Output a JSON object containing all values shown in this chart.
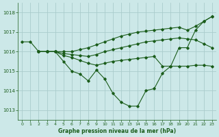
{
  "xlabel": "Graphe pression niveau de la mer (hPa)",
  "xlim": [
    -0.5,
    23.5
  ],
  "ylim": [
    1012.5,
    1018.5
  ],
  "yticks": [
    1013,
    1014,
    1015,
    1016,
    1017,
    1018
  ],
  "xticks": [
    0,
    1,
    2,
    3,
    4,
    5,
    6,
    7,
    8,
    9,
    10,
    11,
    12,
    13,
    14,
    15,
    16,
    17,
    18,
    19,
    20,
    21,
    22,
    23
  ],
  "bg_color": "#cce8e8",
  "grid_color": "#aacccc",
  "line_color": "#1a5c1a",
  "lines": [
    {
      "x": [
        0,
        1,
        2,
        3,
        4,
        5,
        6,
        7,
        8,
        9,
        10,
        11,
        12,
        13,
        14,
        15,
        16,
        17,
        18,
        19,
        20,
        21,
        22,
        23
      ],
      "y": [
        1016.5,
        1016.5,
        1016.0,
        1016.0,
        1016.0,
        1015.5,
        1015.0,
        1014.85,
        1014.5,
        1015.05,
        1014.6,
        1013.85,
        1013.4,
        1013.2,
        1013.2,
        1014.0,
        1014.1,
        1014.9,
        1015.25,
        1016.2,
        1016.2,
        1017.1,
        1017.55,
        1017.8
      ]
    },
    {
      "x": [
        2,
        3,
        4,
        5,
        6,
        7,
        8,
        9,
        10,
        11,
        12,
        13,
        14,
        15,
        16,
        17,
        18,
        19,
        20,
        21,
        22,
        23
      ],
      "y": [
        1016.0,
        1016.0,
        1016.0,
        1015.8,
        1015.7,
        1015.55,
        1015.4,
        1015.3,
        1015.4,
        1015.5,
        1015.55,
        1015.6,
        1015.65,
        1015.7,
        1015.75,
        1015.25,
        1015.25,
        1015.25,
        1015.25,
        1015.3,
        1015.3,
        1015.25
      ]
    },
    {
      "x": [
        2,
        3,
        4,
        5,
        6,
        7,
        8,
        9,
        10,
        11,
        12,
        13,
        14,
        15,
        16,
        17,
        18,
        19,
        20,
        21,
        22,
        23
      ],
      "y": [
        1016.0,
        1016.0,
        1016.0,
        1015.9,
        1015.85,
        1015.8,
        1015.75,
        1015.85,
        1016.0,
        1016.1,
        1016.2,
        1016.3,
        1016.4,
        1016.5,
        1016.55,
        1016.6,
        1016.65,
        1016.7,
        1016.65,
        1016.6,
        1016.4,
        1016.2
      ]
    },
    {
      "x": [
        2,
        3,
        4,
        5,
        6,
        7,
        8,
        9,
        10,
        11,
        12,
        13,
        14,
        15,
        16,
        17,
        18,
        19,
        20,
        21,
        22,
        23
      ],
      "y": [
        1016.0,
        1016.0,
        1016.0,
        1016.0,
        1016.0,
        1016.1,
        1016.2,
        1016.35,
        1016.5,
        1016.65,
        1016.8,
        1016.9,
        1017.0,
        1017.05,
        1017.1,
        1017.15,
        1017.2,
        1017.25,
        1017.1,
        1017.3,
        1017.55,
        1017.8
      ]
    }
  ]
}
